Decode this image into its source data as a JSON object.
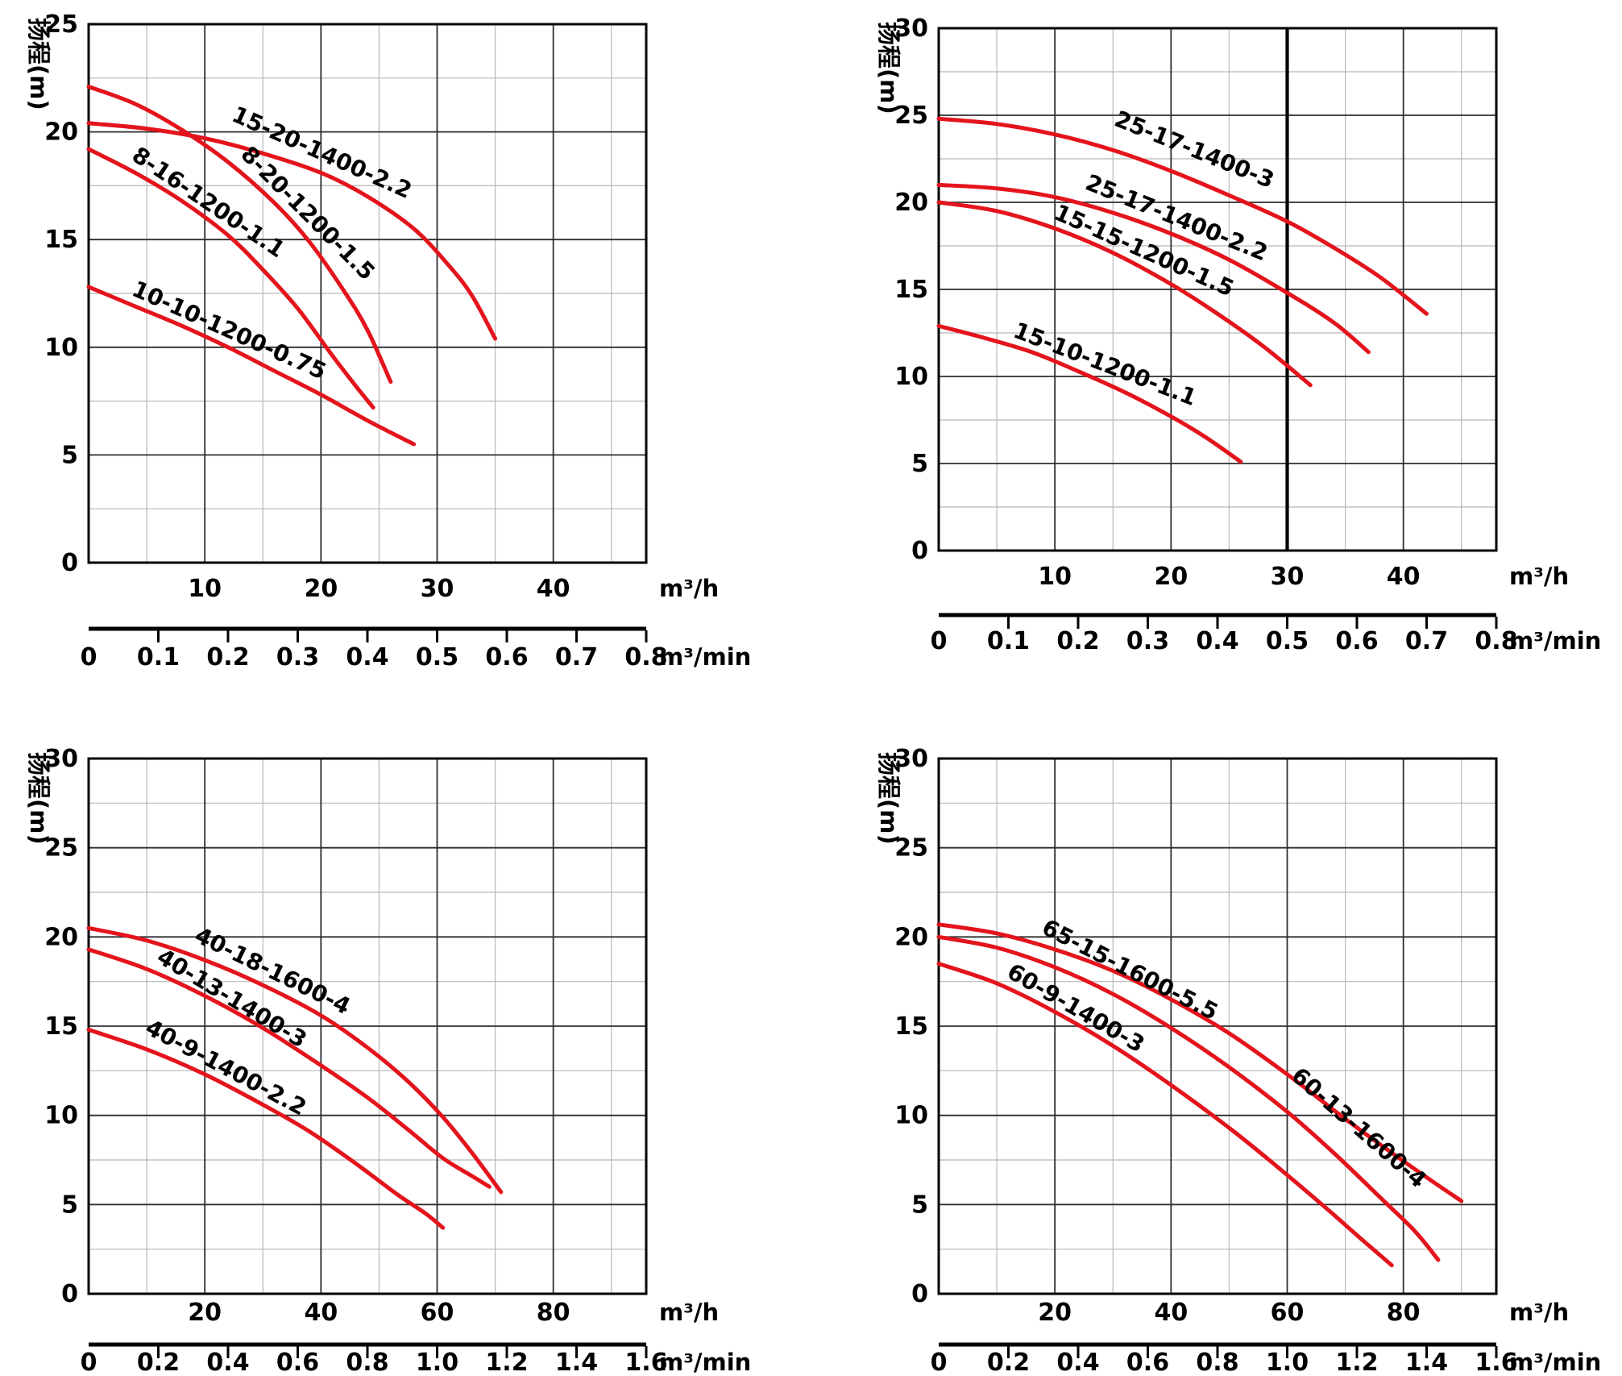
{
  "colors": {
    "background": "#ffffff",
    "curve": "#e4141c",
    "major_grid": "#2e2e2e",
    "minor_grid": "#b8b8b8",
    "frame": "#000000",
    "text": "#000000",
    "reference_line": "#000000"
  },
  "chart_data": [
    {
      "type": "line",
      "position": "top-left",
      "title": "",
      "ylabel": "扬程(m)",
      "x_unit_primary": "m³/h",
      "x_unit_secondary": "m³/min",
      "x_range_m3h": [
        0,
        48
      ],
      "x_major_ticks": [
        10,
        20,
        30,
        40
      ],
      "x_minor_step": 5,
      "y_range": [
        0,
        25
      ],
      "y_major_ticks": [
        0,
        5,
        10,
        15,
        20,
        25
      ],
      "y_minor_step": 2.5,
      "secondary_ticks": [
        "0",
        "0.1",
        "0.2",
        "0.3",
        "0.4",
        "0.5",
        "0.6",
        "0.7",
        "0.8"
      ],
      "grid": true,
      "legend_position": "none",
      "reference_line_x": null,
      "series": [
        {
          "name": "15-20-1400-2.2",
          "points": [
            [
              0,
              20.4
            ],
            [
              5,
              20.15
            ],
            [
              10,
              19.7
            ],
            [
              15,
              19.0
            ],
            [
              20,
              18.1
            ],
            [
              24,
              17.0
            ],
            [
              28,
              15.5
            ],
            [
              31,
              13.8
            ],
            [
              33,
              12.4
            ],
            [
              35,
              10.4
            ]
          ],
          "label": {
            "x": 12.2,
            "y": 20.55,
            "angle": 24
          }
        },
        {
          "name": "8-20-1200-1.5",
          "points": [
            [
              0,
              22.1
            ],
            [
              4,
              21.3
            ],
            [
              8,
              20.1
            ],
            [
              12,
              18.6
            ],
            [
              16,
              16.7
            ],
            [
              19,
              14.9
            ],
            [
              22,
              12.6
            ],
            [
              24,
              10.8
            ],
            [
              26,
              8.4
            ]
          ],
          "label": {
            "x": 13.0,
            "y": 18.9,
            "angle": 45
          }
        },
        {
          "name": "8-16-1200-1.1",
          "points": [
            [
              0,
              19.2
            ],
            [
              4,
              18.1
            ],
            [
              8,
              16.8
            ],
            [
              12,
              15.2
            ],
            [
              15,
              13.6
            ],
            [
              18,
              11.8
            ],
            [
              21,
              9.6
            ],
            [
              23,
              8.2
            ],
            [
              24.5,
              7.2
            ]
          ],
          "label": {
            "x": 3.6,
            "y": 18.75,
            "angle": 34
          }
        },
        {
          "name": "10-10-1200-0.75",
          "points": [
            [
              0,
              12.8
            ],
            [
              4,
              11.9
            ],
            [
              8,
              11.0
            ],
            [
              12,
              10.0
            ],
            [
              16,
              8.9
            ],
            [
              20,
              7.8
            ],
            [
              24,
              6.6
            ],
            [
              28,
              5.5
            ]
          ],
          "label": {
            "x": 3.6,
            "y": 12.45,
            "angle": 24
          }
        }
      ]
    },
    {
      "type": "line",
      "position": "top-right",
      "title": "",
      "ylabel": "扬程(m)",
      "x_unit_primary": "m³/h",
      "x_unit_secondary": "m³/min",
      "x_range_m3h": [
        0,
        48
      ],
      "x_major_ticks": [
        10,
        20,
        30,
        40
      ],
      "x_minor_step": 5,
      "y_range": [
        0,
        30
      ],
      "y_major_ticks": [
        0,
        5,
        10,
        15,
        20,
        25,
        30
      ],
      "y_minor_step": 2.5,
      "secondary_ticks": [
        "0",
        "0.1",
        "0.2",
        "0.3",
        "0.4",
        "0.5",
        "0.6",
        "0.7",
        "0.8"
      ],
      "grid": true,
      "legend_position": "none",
      "reference_line_x": 30,
      "series": [
        {
          "name": "25-17-1400-3",
          "points": [
            [
              0,
              24.8
            ],
            [
              5,
              24.5
            ],
            [
              10,
              23.9
            ],
            [
              15,
              23.0
            ],
            [
              20,
              21.8
            ],
            [
              25,
              20.4
            ],
            [
              30,
              18.9
            ],
            [
              34,
              17.4
            ],
            [
              38,
              15.7
            ],
            [
              42,
              13.6
            ]
          ],
          "label": {
            "x": 15.0,
            "y": 24.45,
            "angle": 22
          }
        },
        {
          "name": "25-17-1400-2.2",
          "points": [
            [
              0,
              21.0
            ],
            [
              5,
              20.8
            ],
            [
              10,
              20.3
            ],
            [
              15,
              19.4
            ],
            [
              20,
              18.2
            ],
            [
              25,
              16.7
            ],
            [
              30,
              14.8
            ],
            [
              34,
              13.1
            ],
            [
              37,
              11.4
            ]
          ],
          "label": {
            "x": 12.5,
            "y": 20.8,
            "angle": 22
          }
        },
        {
          "name": "15-15-1200-1.5",
          "points": [
            [
              0,
              20.0
            ],
            [
              5,
              19.5
            ],
            [
              10,
              18.5
            ],
            [
              15,
              17.1
            ],
            [
              20,
              15.3
            ],
            [
              24,
              13.6
            ],
            [
              28,
              11.7
            ],
            [
              32,
              9.5
            ]
          ],
          "label": {
            "x": 9.8,
            "y": 19.1,
            "angle": 24
          }
        },
        {
          "name": "15-10-1200-1.1",
          "points": [
            [
              0,
              12.9
            ],
            [
              4,
              12.2
            ],
            [
              8,
              11.4
            ],
            [
              12,
              10.3
            ],
            [
              16,
              9.1
            ],
            [
              20,
              7.7
            ],
            [
              23,
              6.5
            ],
            [
              26,
              5.1
            ]
          ],
          "label": {
            "x": 6.3,
            "y": 12.3,
            "angle": 21
          }
        }
      ]
    },
    {
      "type": "line",
      "position": "bottom-left",
      "title": "",
      "ylabel": "扬程(m)",
      "x_unit_primary": "m³/h",
      "x_unit_secondary": "m³/min",
      "x_range_m3h": [
        0,
        96
      ],
      "x_major_ticks": [
        20,
        40,
        60,
        80
      ],
      "x_minor_step": 10,
      "y_range": [
        0,
        30
      ],
      "y_major_ticks": [
        0,
        5,
        10,
        15,
        20,
        25,
        30
      ],
      "y_minor_step": 2.5,
      "secondary_ticks": [
        "0",
        "0.2",
        "0.4",
        "0.6",
        "0.8",
        "1.0",
        "1.2",
        "1.4",
        "1.6"
      ],
      "grid": true,
      "legend_position": "none",
      "reference_line_x": null,
      "series": [
        {
          "name": "40-18-1600-4",
          "points": [
            [
              0,
              20.5
            ],
            [
              10,
              19.8
            ],
            [
              20,
              18.7
            ],
            [
              30,
              17.3
            ],
            [
              40,
              15.6
            ],
            [
              48,
              13.8
            ],
            [
              55,
              11.9
            ],
            [
              61,
              9.9
            ],
            [
              66,
              7.9
            ],
            [
              71,
              5.7
            ]
          ],
          "label": {
            "x": 18,
            "y": 19.8,
            "angle": 26
          }
        },
        {
          "name": "40-13-1400-3",
          "points": [
            [
              0,
              19.3
            ],
            [
              10,
              18.2
            ],
            [
              20,
              16.7
            ],
            [
              30,
              14.9
            ],
            [
              40,
              12.8
            ],
            [
              48,
              11.0
            ],
            [
              55,
              9.2
            ],
            [
              61,
              7.6
            ],
            [
              66,
              6.6
            ],
            [
              69,
              6.0
            ]
          ],
          "label": {
            "x": 11.5,
            "y": 18.65,
            "angle": 31
          }
        },
        {
          "name": "40-9-1400-2.2",
          "points": [
            [
              0,
              14.8
            ],
            [
              10,
              13.7
            ],
            [
              20,
              12.3
            ],
            [
              30,
              10.6
            ],
            [
              38,
              9.1
            ],
            [
              46,
              7.3
            ],
            [
              53,
              5.6
            ],
            [
              58,
              4.5
            ],
            [
              61,
              3.7
            ]
          ],
          "label": {
            "x": 9.5,
            "y": 14.65,
            "angle": 28
          }
        }
      ]
    },
    {
      "type": "line",
      "position": "bottom-right",
      "title": "",
      "ylabel": "扬程(m)",
      "x_unit_primary": "m³/h",
      "x_unit_secondary": "m³/min",
      "x_range_m3h": [
        0,
        96
      ],
      "x_major_ticks": [
        20,
        40,
        60,
        80
      ],
      "x_minor_step": 10,
      "y_range": [
        0,
        30
      ],
      "y_major_ticks": [
        0,
        5,
        10,
        15,
        20,
        25,
        30
      ],
      "y_minor_step": 2.5,
      "secondary_ticks": [
        "0",
        "0.2",
        "0.4",
        "0.6",
        "0.8",
        "1.0",
        "1.2",
        "1.4",
        "1.6"
      ],
      "grid": true,
      "legend_position": "none",
      "reference_line_x": null,
      "series": [
        {
          "name": "65-15-1600-5.5",
          "points": [
            [
              0,
              20.7
            ],
            [
              10,
              20.2
            ],
            [
              20,
              19.3
            ],
            [
              30,
              18.1
            ],
            [
              40,
              16.5
            ],
            [
              50,
              14.6
            ],
            [
              60,
              12.3
            ],
            [
              70,
              9.8
            ],
            [
              78,
              7.9
            ],
            [
              85,
              6.3
            ],
            [
              90,
              5.2
            ]
          ],
          "label": {
            "x": 17.5,
            "y": 20.25,
            "angle": 27
          }
        },
        {
          "name": "60-13-1600-4",
          "points": [
            [
              0,
              20.0
            ],
            [
              10,
              19.4
            ],
            [
              20,
              18.3
            ],
            [
              30,
              16.8
            ],
            [
              40,
              14.9
            ],
            [
              50,
              12.7
            ],
            [
              60,
              10.2
            ],
            [
              68,
              7.9
            ],
            [
              76,
              5.4
            ],
            [
              82,
              3.5
            ],
            [
              86,
              1.9
            ]
          ],
          "label": {
            "x": 60.5,
            "y": 12.1,
            "angle": 41
          }
        },
        {
          "name": "60-9-1400-3",
          "points": [
            [
              0,
              18.5
            ],
            [
              10,
              17.4
            ],
            [
              20,
              15.8
            ],
            [
              30,
              13.9
            ],
            [
              40,
              11.7
            ],
            [
              50,
              9.3
            ],
            [
              58,
              7.2
            ],
            [
              66,
              5.0
            ],
            [
              73,
              3.0
            ],
            [
              78,
              1.6
            ]
          ],
          "label": {
            "x": 11.5,
            "y": 17.8,
            "angle": 30
          }
        }
      ]
    }
  ]
}
